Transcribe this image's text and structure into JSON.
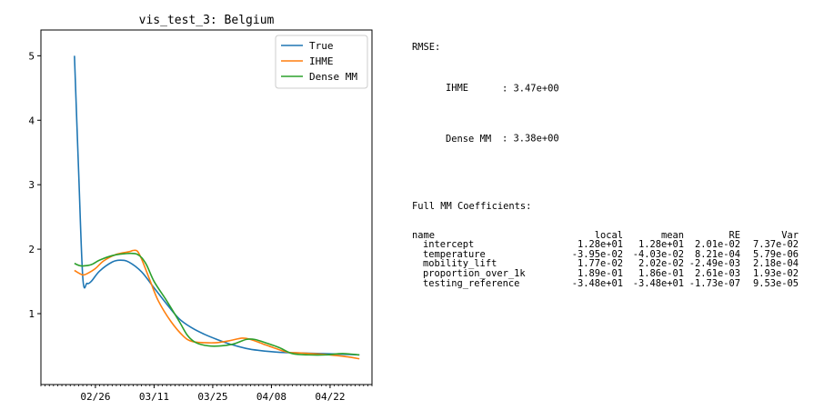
{
  "chart_data": {
    "type": "line",
    "title": "vis_test_3: Belgium",
    "xlabel": "",
    "ylabel": "",
    "x_start": "2020-02-21",
    "x_end": "2020-04-29",
    "xlim": [
      "2020-02-13",
      "2020-05-02"
    ],
    "ylim": [
      -0.1,
      5.4
    ],
    "yticks": [
      1,
      2,
      3,
      4,
      5
    ],
    "xticks": [
      {
        "label": "02/26",
        "date": "2020-02-26"
      },
      {
        "label": "03/11",
        "date": "2020-03-11"
      },
      {
        "label": "03/25",
        "date": "2020-03-25"
      },
      {
        "label": "04/08",
        "date": "2020-04-08"
      },
      {
        "label": "04/22",
        "date": "2020-04-22"
      }
    ],
    "legend_position": "top-right",
    "grid": false,
    "series": [
      {
        "name": "True",
        "color": "#1f77b4",
        "points": [
          [
            "2020-02-21",
            5.0
          ],
          [
            "2020-02-22",
            3.2
          ],
          [
            "2020-02-23",
            1.55
          ],
          [
            "2020-02-24",
            1.47
          ],
          [
            "2020-02-25",
            1.5
          ],
          [
            "2020-02-27",
            1.66
          ],
          [
            "2020-03-01",
            1.8
          ],
          [
            "2020-03-03",
            1.83
          ],
          [
            "2020-03-05",
            1.8
          ],
          [
            "2020-03-08",
            1.65
          ],
          [
            "2020-03-11",
            1.4
          ],
          [
            "2020-03-14",
            1.15
          ],
          [
            "2020-03-17",
            0.92
          ],
          [
            "2020-03-20",
            0.78
          ],
          [
            "2020-03-23",
            0.68
          ],
          [
            "2020-03-26",
            0.6
          ],
          [
            "2020-03-29",
            0.53
          ],
          [
            "2020-04-02",
            0.46
          ],
          [
            "2020-04-05",
            0.43
          ],
          [
            "2020-04-10",
            0.4
          ],
          [
            "2020-04-15",
            0.39
          ],
          [
            "2020-04-20",
            0.38
          ],
          [
            "2020-04-25",
            0.37
          ],
          [
            "2020-04-29",
            0.36
          ]
        ]
      },
      {
        "name": "IHME",
        "color": "#ff7f0e",
        "points": [
          [
            "2020-02-21",
            1.67
          ],
          [
            "2020-02-22",
            1.63
          ],
          [
            "2020-02-23",
            1.6
          ],
          [
            "2020-02-24",
            1.62
          ],
          [
            "2020-02-26",
            1.7
          ],
          [
            "2020-02-28",
            1.82
          ],
          [
            "2020-03-02",
            1.92
          ],
          [
            "2020-03-05",
            1.96
          ],
          [
            "2020-03-06",
            1.98
          ],
          [
            "2020-03-07",
            1.97
          ],
          [
            "2020-03-08",
            1.85
          ],
          [
            "2020-03-10",
            1.52
          ],
          [
            "2020-03-12",
            1.2
          ],
          [
            "2020-03-15",
            0.88
          ],
          [
            "2020-03-18",
            0.65
          ],
          [
            "2020-03-20",
            0.57
          ],
          [
            "2020-03-23",
            0.55
          ],
          [
            "2020-03-26",
            0.55
          ],
          [
            "2020-03-29",
            0.58
          ],
          [
            "2020-04-01",
            0.62
          ],
          [
            "2020-04-03",
            0.6
          ],
          [
            "2020-04-06",
            0.53
          ],
          [
            "2020-04-09",
            0.46
          ],
          [
            "2020-04-12",
            0.4
          ],
          [
            "2020-04-15",
            0.39
          ],
          [
            "2020-04-20",
            0.37
          ],
          [
            "2020-04-25",
            0.34
          ],
          [
            "2020-04-29",
            0.3
          ]
        ]
      },
      {
        "name": "Dense MM",
        "color": "#2ca02c",
        "points": [
          [
            "2020-02-21",
            1.78
          ],
          [
            "2020-02-22",
            1.75
          ],
          [
            "2020-02-23",
            1.74
          ],
          [
            "2020-02-25",
            1.76
          ],
          [
            "2020-02-27",
            1.83
          ],
          [
            "2020-03-01",
            1.9
          ],
          [
            "2020-03-04",
            1.93
          ],
          [
            "2020-03-07",
            1.92
          ],
          [
            "2020-03-09",
            1.78
          ],
          [
            "2020-03-11",
            1.5
          ],
          [
            "2020-03-14",
            1.2
          ],
          [
            "2020-03-17",
            0.88
          ],
          [
            "2020-03-19",
            0.66
          ],
          [
            "2020-03-21",
            0.55
          ],
          [
            "2020-03-24",
            0.5
          ],
          [
            "2020-03-27",
            0.5
          ],
          [
            "2020-03-30",
            0.53
          ],
          [
            "2020-04-02",
            0.6
          ],
          [
            "2020-04-04",
            0.6
          ],
          [
            "2020-04-07",
            0.54
          ],
          [
            "2020-04-10",
            0.47
          ],
          [
            "2020-04-13",
            0.38
          ],
          [
            "2020-04-17",
            0.36
          ],
          [
            "2020-04-21",
            0.36
          ],
          [
            "2020-04-25",
            0.38
          ],
          [
            "2020-04-29",
            0.36
          ]
        ]
      }
    ]
  },
  "rmse": {
    "header": "RMSE:",
    "rows": [
      {
        "name": "IHME",
        "value": ": 3.47e+00"
      },
      {
        "name": "Dense MM",
        "value": ": 3.38e+00"
      }
    ]
  },
  "coefficients": {
    "header": "Full MM Coefficients:",
    "columns": [
      "name",
      "local",
      "mean",
      "RE",
      "Var"
    ],
    "rows": [
      [
        "intercept",
        "1.28e+01",
        "1.28e+01",
        "2.01e-02",
        "7.37e-02"
      ],
      [
        "temperature",
        "-3.95e-02",
        "-4.03e-02",
        "8.21e-04",
        "5.79e-06"
      ],
      [
        "mobility_lift",
        "1.77e-02",
        "2.02e-02",
        "-2.49e-03",
        "2.18e-04"
      ],
      [
        "proportion_over_1k",
        "1.89e-01",
        "1.86e-01",
        "2.61e-03",
        "1.93e-02"
      ],
      [
        "testing_reference",
        "-3.48e+01",
        "-3.48e+01",
        "-1.73e-07",
        "9.53e-05"
      ]
    ]
  }
}
